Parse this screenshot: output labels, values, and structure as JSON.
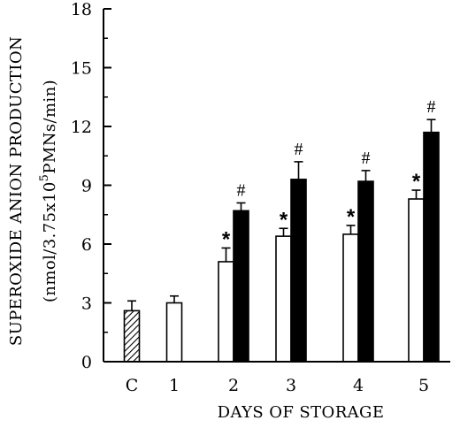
{
  "chart_data": {
    "type": "bar",
    "xlabel": "DAYS OF STORAGE",
    "ylabel_line1": "SUPEROXIDE ANION PRODUCTION",
    "ylabel_line2_prefix": "(nmol/3.75x10",
    "ylabel_line2_sup": "5",
    "ylabel_line2_suffix": "PMNs/min)",
    "ylim": [
      0,
      18
    ],
    "yticks": [
      "0",
      "3",
      "6",
      "9",
      "12",
      "15",
      "18"
    ],
    "categories": [
      "C",
      "1",
      "2",
      "3",
      "4",
      "5"
    ],
    "series": [
      {
        "style": "hatched",
        "color": "#000000",
        "values": [
          2.6,
          null,
          null,
          null,
          null,
          null
        ],
        "errors": [
          0.5,
          null,
          null,
          null,
          null,
          null
        ],
        "markers": [
          "",
          "",
          "",
          "",
          "",
          ""
        ]
      },
      {
        "style": "open",
        "color": "#ffffff",
        "values": [
          null,
          3.0,
          5.1,
          6.4,
          6.5,
          8.3
        ],
        "errors": [
          null,
          0.35,
          0.7,
          0.4,
          0.45,
          0.45
        ],
        "markers": [
          "",
          "",
          "*",
          "*",
          "*",
          "*"
        ]
      },
      {
        "style": "filled",
        "color": "#000000",
        "values": [
          null,
          null,
          7.7,
          9.3,
          9.2,
          11.7
        ],
        "errors": [
          null,
          null,
          0.4,
          0.9,
          0.55,
          0.65
        ],
        "markers": [
          "",
          "",
          "#",
          "#",
          "#",
          "#"
        ]
      }
    ],
    "grid": false,
    "legend": "none"
  }
}
